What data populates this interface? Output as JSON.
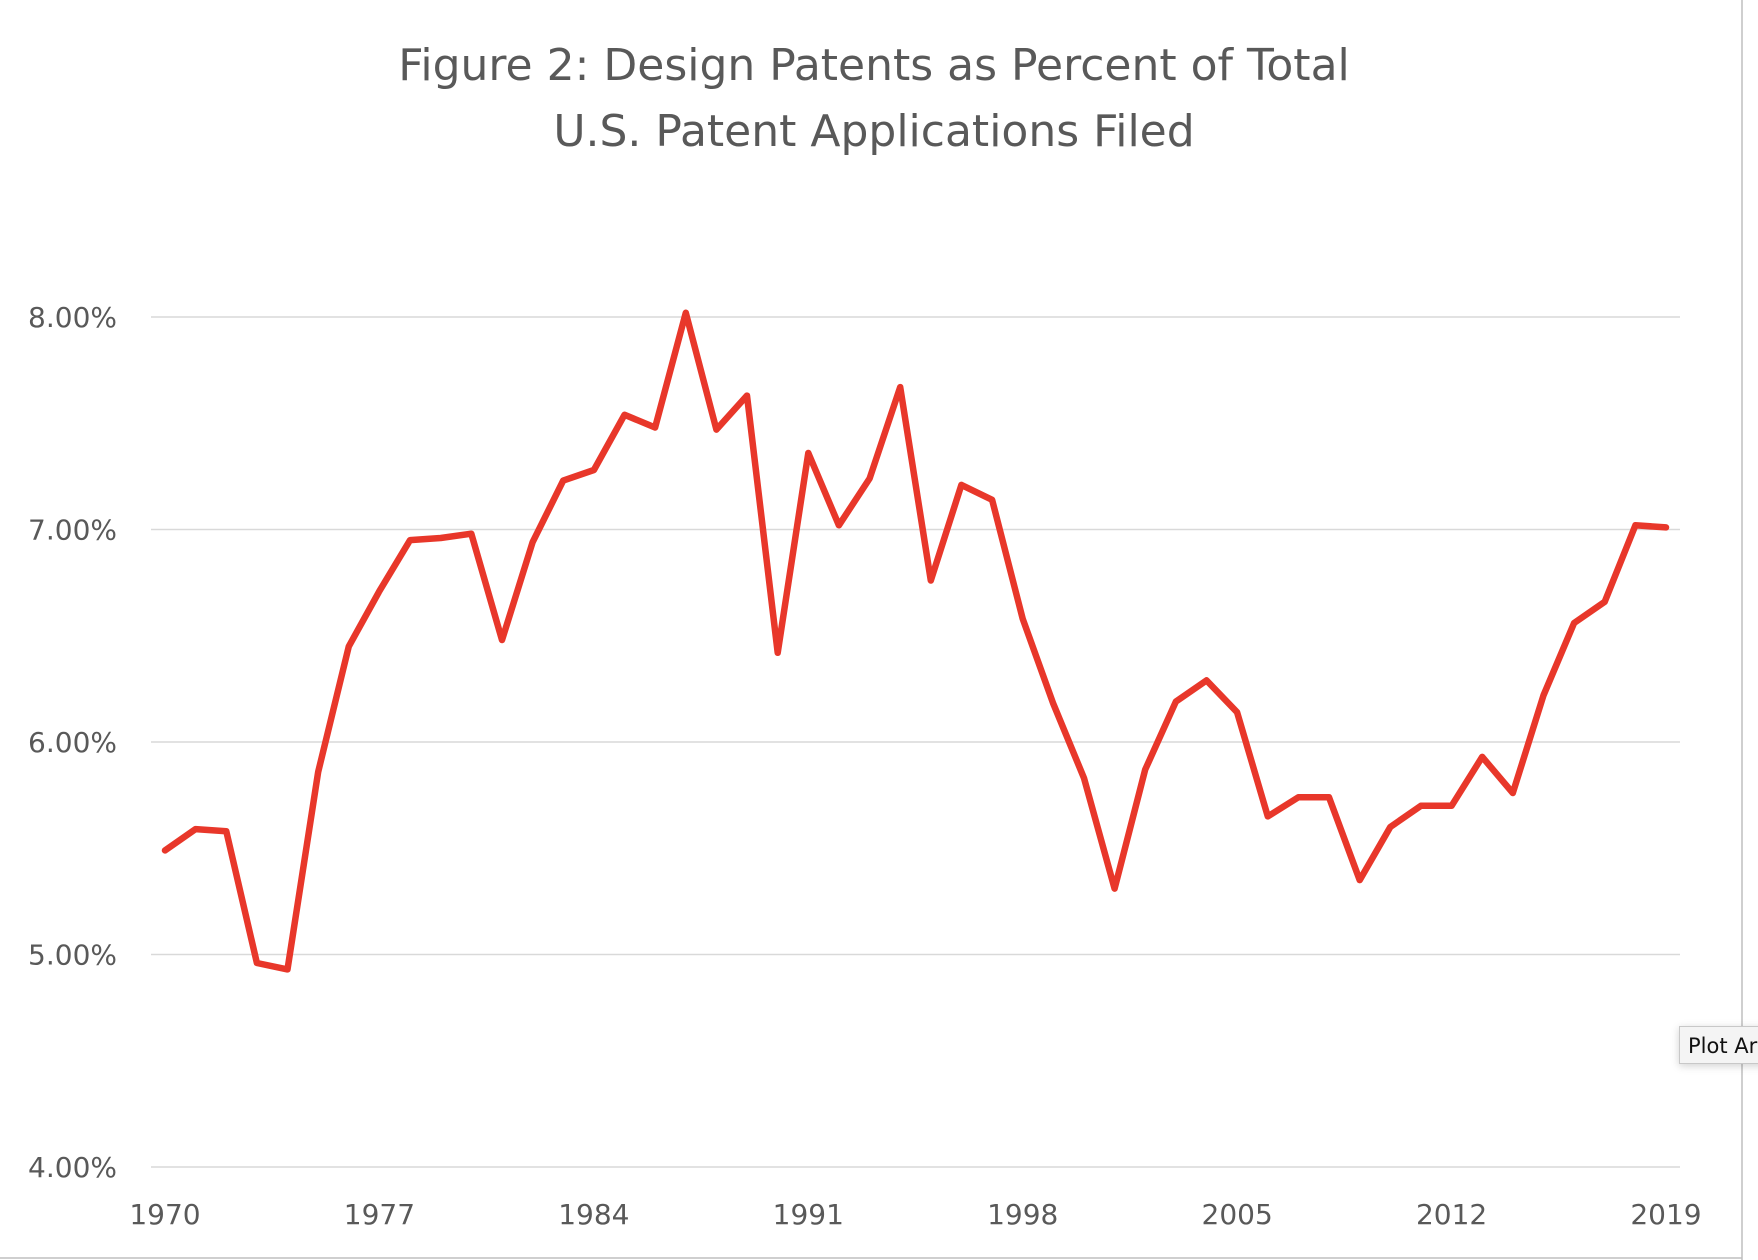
{
  "chart_data": {
    "type": "line",
    "title": "Figure 2: Design Patents as Percent of Total U.S. Patent Applications Filed",
    "title_lines": [
      "Figure 2: Design Patents as Percent of Total",
      "U.S. Patent Applications Filed"
    ],
    "xlabel": "",
    "ylabel": "",
    "x": [
      1970,
      1971,
      1972,
      1973,
      1974,
      1975,
      1976,
      1977,
      1978,
      1979,
      1980,
      1981,
      1982,
      1983,
      1984,
      1985,
      1986,
      1987,
      1988,
      1989,
      1990,
      1991,
      1992,
      1993,
      1994,
      1995,
      1996,
      1997,
      1998,
      1999,
      2000,
      2001,
      2002,
      2003,
      2004,
      2005,
      2006,
      2007,
      2008,
      2009,
      2010,
      2011,
      2012,
      2013,
      2014,
      2015,
      2016,
      2017,
      2018,
      2019
    ],
    "series": [
      {
        "values": [
          5.49,
          5.59,
          5.58,
          4.96,
          4.93,
          5.86,
          6.45,
          6.71,
          6.95,
          6.96,
          6.98,
          6.48,
          6.94,
          7.23,
          7.28,
          7.54,
          7.48,
          8.02,
          7.47,
          7.63,
          6.42,
          7.36,
          7.02,
          7.24,
          7.67,
          6.76,
          7.21,
          7.14,
          6.58,
          6.18,
          5.83,
          5.31,
          5.87,
          6.19,
          6.29,
          6.14,
          5.65,
          5.74,
          5.74,
          5.35,
          5.6,
          5.7,
          5.7,
          5.93,
          5.76,
          6.22,
          6.56,
          6.66,
          7.02,
          7.01
        ],
        "color": "#e8372a"
      }
    ],
    "ylim": [
      4,
      8
    ],
    "yticks": [
      4,
      5,
      6,
      7,
      8
    ],
    "ytick_labels": [
      "4.00%",
      "5.00%",
      "6.00%",
      "7.00%",
      "8.00%"
    ],
    "xticks": [
      1970,
      1977,
      1984,
      1991,
      1998,
      2005,
      2012,
      2019
    ],
    "xtick_labels": [
      "1970",
      "1977",
      "1984",
      "1991",
      "1998",
      "2005",
      "2012",
      "2019"
    ],
    "grid": "horizontal",
    "legend": "none"
  },
  "tooltip": {
    "text": "Plot Ar"
  },
  "colors": {
    "text": "#595959",
    "grid": "#d9d9d9",
    "line": "#e8372a"
  }
}
